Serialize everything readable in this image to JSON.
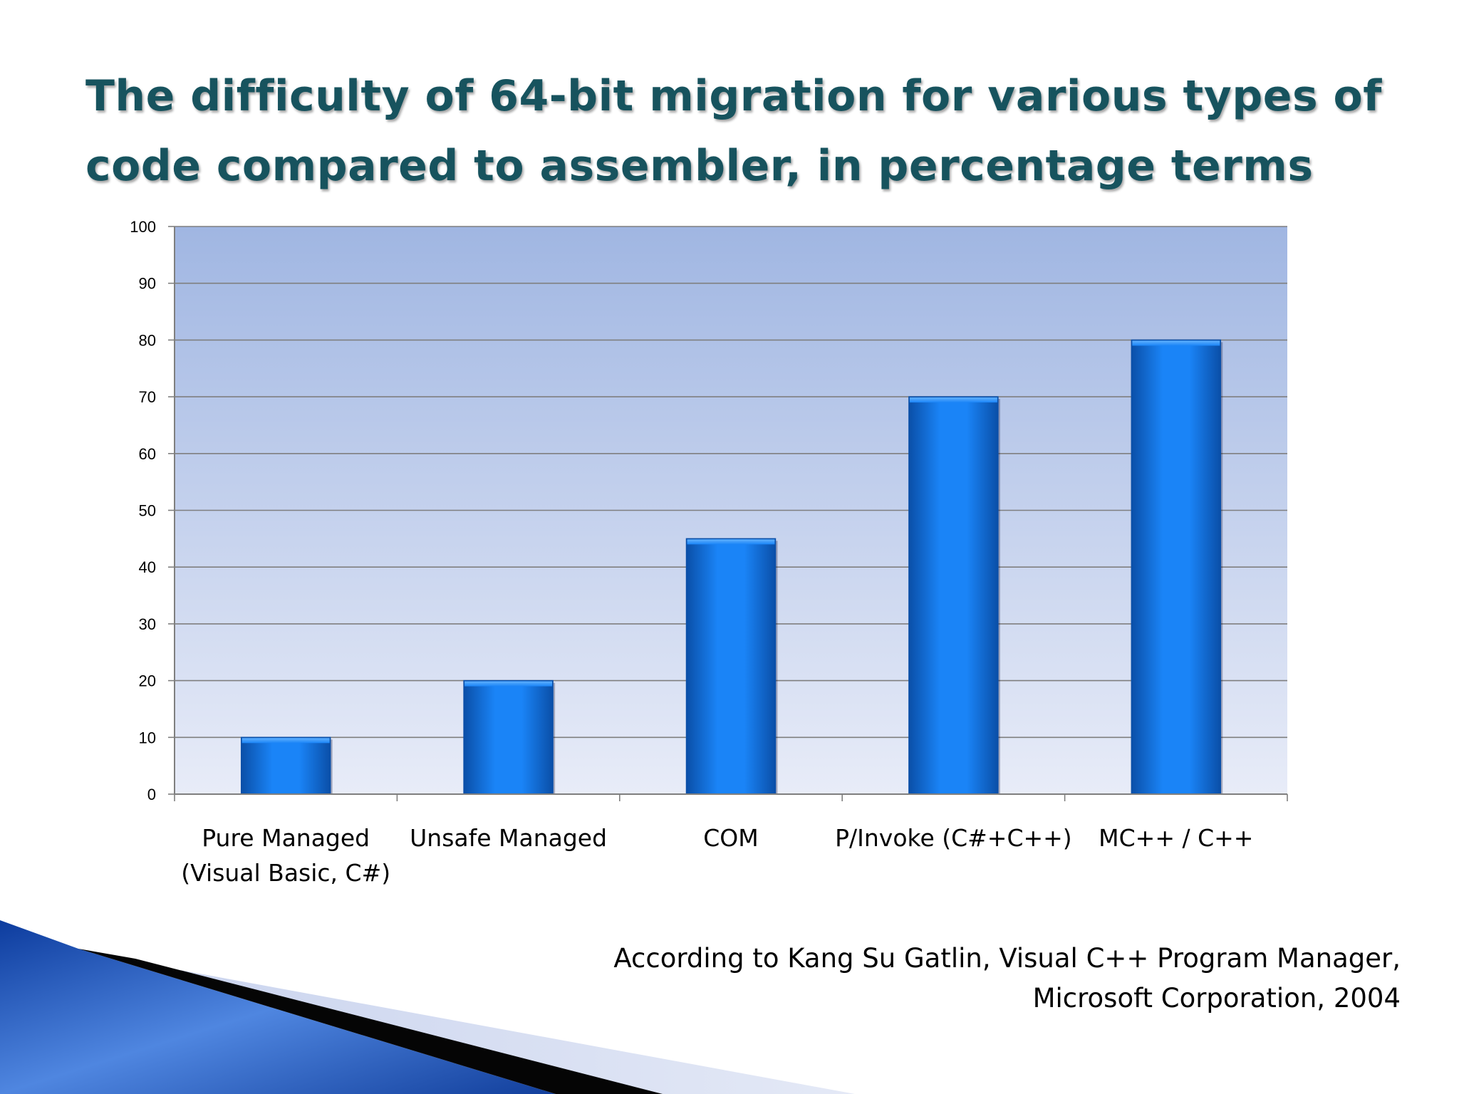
{
  "slide": {
    "title_line1": "The difficulty of 64-bit migration for various types of",
    "title_line2": "code compared to assembler, in percentage terms",
    "credit_line1": "According to Kang Su Gatlin, Visual C++ Program Manager,",
    "credit_line2": "Microsoft Corporation, 2004"
  },
  "colors": {
    "title": "#17535e",
    "bar_light": "#1a84f7",
    "bar_dark": "#0a4fa8",
    "plot_top": "#a0b6e2",
    "plot_bottom": "#e8ecf8",
    "swoosh_blue": "#1a4fb8"
  },
  "chart_data": {
    "type": "bar",
    "categories": [
      [
        "Pure Managed",
        "(Visual Basic, C#)"
      ],
      [
        "Unsafe Managed"
      ],
      [
        "COM"
      ],
      [
        "P/Invoke (C#+C++)"
      ],
      [
        "MC++ / C++"
      ]
    ],
    "values": [
      10,
      20,
      45,
      70,
      80
    ],
    "title": "",
    "xlabel": "",
    "ylabel": "",
    "ylim": [
      0,
      100
    ],
    "yticks": [
      0,
      10,
      20,
      30,
      40,
      50,
      60,
      70,
      80,
      90,
      100
    ],
    "grid": true,
    "legend": false
  }
}
